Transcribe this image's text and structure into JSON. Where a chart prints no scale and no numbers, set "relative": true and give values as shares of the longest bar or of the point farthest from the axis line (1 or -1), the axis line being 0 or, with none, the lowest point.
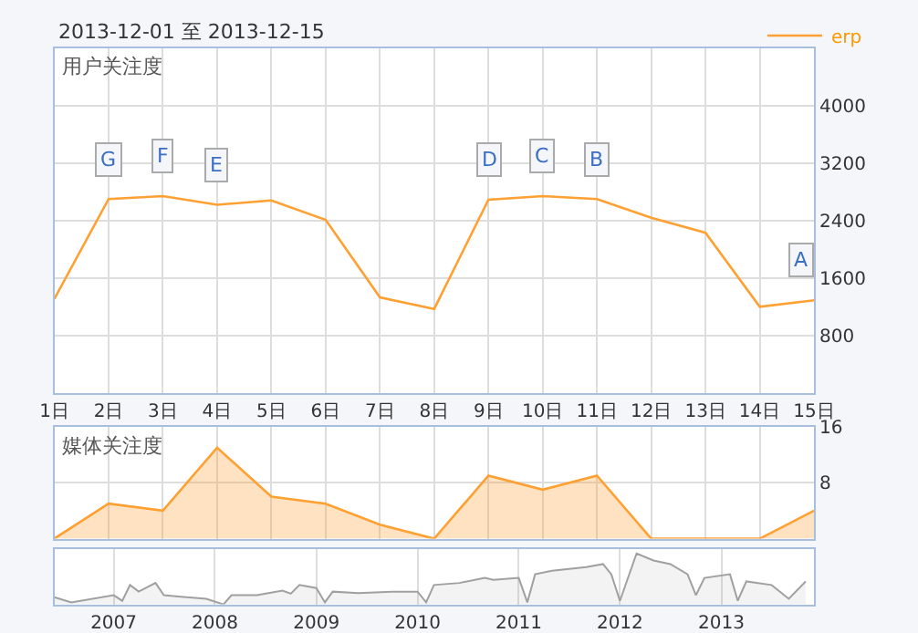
{
  "chart_data": [
    {
      "type": "line",
      "title": "2013-12-01 至 2013-12-15",
      "subtitle": "用户关注度",
      "legend": "top right",
      "grid": true,
      "marker": "none",
      "line_style": "solid",
      "x": [
        1,
        2,
        3,
        4,
        5,
        6,
        7,
        8,
        9,
        10,
        11,
        12,
        13,
        14,
        15
      ],
      "series": [
        {
          "name": "erp",
          "color": "#ffa033",
          "values": [
            1310,
            2700,
            2740,
            2620,
            2680,
            2410,
            1330,
            1170,
            2690,
            2740,
            2700,
            2440,
            2230,
            1200,
            1290
          ]
        }
      ],
      "xlim": [
        1,
        15
      ],
      "xticks": [
        {
          "value": 1,
          "label": "1日"
        },
        {
          "value": 2,
          "label": "2日"
        },
        {
          "value": 3,
          "label": "3日"
        },
        {
          "value": 4,
          "label": "4日"
        },
        {
          "value": 5,
          "label": "5日"
        },
        {
          "value": 6,
          "label": "6日"
        },
        {
          "value": 7,
          "label": "7日"
        },
        {
          "value": 8,
          "label": "8日"
        },
        {
          "value": 9,
          "label": "9日"
        },
        {
          "value": 10,
          "label": "10日"
        },
        {
          "value": 11,
          "label": "11日"
        },
        {
          "value": 12,
          "label": "12日"
        },
        {
          "value": 13,
          "label": "13日"
        },
        {
          "value": 14,
          "label": "14日"
        },
        {
          "value": 15,
          "label": "15日"
        }
      ],
      "ylim": [
        0,
        4800
      ],
      "yticks": [
        800,
        1600,
        2400,
        3200,
        4000
      ],
      "annotations": [
        {
          "text": "G",
          "x": 2,
          "y": 2700
        },
        {
          "text": "F",
          "x": 3,
          "y": 2740
        },
        {
          "text": "E",
          "x": 4,
          "y": 2620
        },
        {
          "text": "D",
          "x": 9,
          "y": 2690
        },
        {
          "text": "C",
          "x": 10,
          "y": 2740
        },
        {
          "text": "B",
          "x": 11,
          "y": 2700
        },
        {
          "text": "A",
          "x": 15,
          "y": 1290
        }
      ]
    },
    {
      "type": "area",
      "title": "媒体关注度",
      "grid": true,
      "tick_labels": "y",
      "x": [
        1,
        2,
        3,
        4,
        5,
        6,
        7,
        8,
        9,
        10,
        11,
        12,
        13,
        14,
        15
      ],
      "series": [
        {
          "color": "#ffa033",
          "values": [
            0,
            5,
            4,
            13,
            6,
            5,
            2,
            0,
            9,
            7,
            9,
            0,
            0,
            0,
            4
          ]
        }
      ],
      "xlim": [
        1,
        15
      ],
      "xticks": [
        {
          "value": 1,
          "label": null
        },
        {
          "value": 2,
          "label": null
        },
        {
          "value": 3,
          "label": null
        },
        {
          "value": 4,
          "label": null
        },
        {
          "value": 5,
          "label": null
        },
        {
          "value": 6,
          "label": null
        },
        {
          "value": 7,
          "label": null
        },
        {
          "value": 8,
          "label": null
        },
        {
          "value": 9,
          "label": null
        },
        {
          "value": 10,
          "label": null
        },
        {
          "value": 11,
          "label": null
        },
        {
          "value": 12,
          "label": null
        },
        {
          "value": 13,
          "label": null
        },
        {
          "value": 14,
          "label": null
        },
        {
          "value": 15,
          "label": null
        }
      ],
      "ylim": [
        0,
        16
      ],
      "yticks": [
        8,
        16
      ]
    },
    {
      "type": "area",
      "relative": true,
      "grid": "x",
      "tick_labels": "x",
      "x": [
        "2006-06",
        "2006-08",
        "2007-01",
        "2007-02",
        "2007-03",
        "2007-04",
        "2007-06",
        "2007-07",
        "2007-09",
        "2007-12",
        "2008-02",
        "2008-03",
        "2008-06",
        "2008-09",
        "2008-10",
        "2008-11",
        "2009-01",
        "2009-02",
        "2009-03",
        "2009-06",
        "2009-10",
        "2010-01",
        "2010-02",
        "2010-03",
        "2010-06",
        "2010-09",
        "2010-10",
        "2011-01",
        "2011-02",
        "2011-03",
        "2011-05",
        "2011-09",
        "2011-11",
        "2011-12",
        "2012-01",
        "2012-03",
        "2012-05",
        "2012-07",
        "2012-09",
        "2012-10",
        "2012-11",
        "2013-02",
        "2013-03",
        "2013-04",
        "2013-07",
        "2013-09",
        "2013-11"
      ],
      "series": [
        {
          "color": "#a0a0a0",
          "values": [
            0.14,
            0.04,
            0.18,
            0.07,
            0.38,
            0.25,
            0.42,
            0.18,
            0.15,
            0.11,
            0,
            0.18,
            0.18,
            0.27,
            0.21,
            0.38,
            0.32,
            0.04,
            0.25,
            0.22,
            0.25,
            0.25,
            0.04,
            0.38,
            0.42,
            0.52,
            0.48,
            0.52,
            0.04,
            0.59,
            0.66,
            0.73,
            0.79,
            0.59,
            0.07,
            1,
            0.86,
            0.79,
            0.59,
            0.18,
            0.52,
            0.59,
            0.07,
            0.45,
            0.38,
            0.11,
            0.45
          ]
        }
      ],
      "xlim": [
        "2006-06",
        "2013-12"
      ],
      "xticks": [
        "2007",
        "2008",
        "2009",
        "2010",
        "2011",
        "2012",
        "2013"
      ]
    }
  ]
}
